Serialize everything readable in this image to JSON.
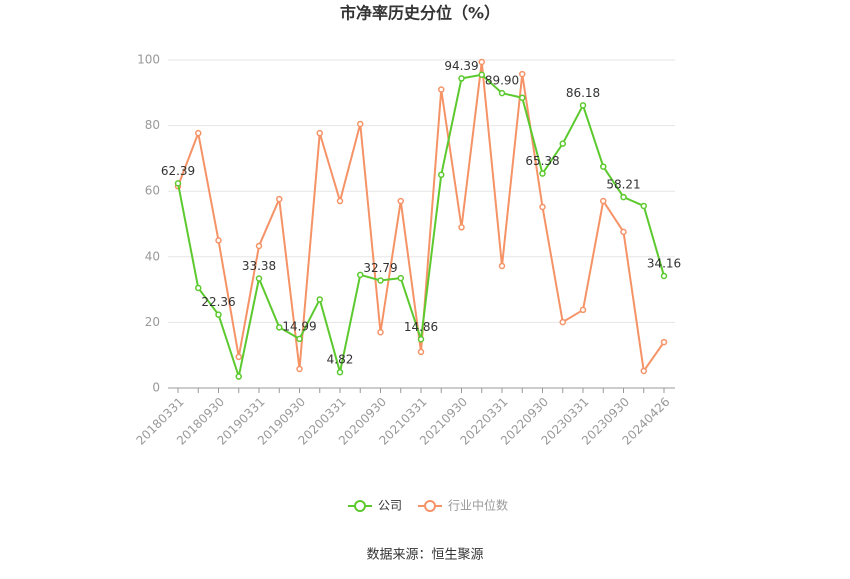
{
  "chart_data": {
    "type": "line",
    "title": "市净率历史分位（%）",
    "source": "数据来源：恒生聚源",
    "categories": [
      "20180331",
      null,
      "20180930",
      null,
      "20190331",
      null,
      "20190930",
      null,
      "20200331",
      null,
      "20200930",
      null,
      "20210331",
      null,
      "20210930",
      null,
      "20220331",
      null,
      "20220930",
      null,
      "20230331",
      null,
      "20230930",
      null,
      "20240426"
    ],
    "series": [
      {
        "name": "公司",
        "color": "#5cc92e",
        "values": [
          62.39,
          30.5,
          22.36,
          3.5,
          33.38,
          18.5,
          14.99,
          27,
          4.82,
          34.5,
          32.79,
          33.5,
          14.86,
          65,
          94.39,
          95.5,
          89.9,
          88.5,
          65.38,
          74.5,
          86.18,
          67.5,
          58.21,
          55.5,
          34.16
        ],
        "value_labels": [
          "62.39",
          null,
          "22.36",
          null,
          "33.38",
          null,
          "14.99",
          null,
          "4.82",
          null,
          "32.79",
          null,
          "14.86",
          null,
          "94.39",
          null,
          "89.90",
          null,
          "65.38",
          null,
          "86.18",
          null,
          "58.21",
          null,
          "34.16"
        ]
      },
      {
        "name": "行业中位数",
        "color": "#f59367",
        "values": [
          61.5,
          77.7,
          45,
          9.5,
          43.3,
          57.6,
          5.8,
          77.7,
          57,
          80.5,
          17,
          57,
          11,
          91,
          49,
          99.4,
          37.2,
          95.7,
          55.2,
          20.1,
          23.8,
          57,
          47.6,
          5.2,
          14
        ]
      }
    ],
    "ylim": [
      0,
      100
    ],
    "yticks": [
      0,
      20,
      40,
      60,
      80,
      100
    ],
    "grid": true,
    "legend": "bottom"
  }
}
